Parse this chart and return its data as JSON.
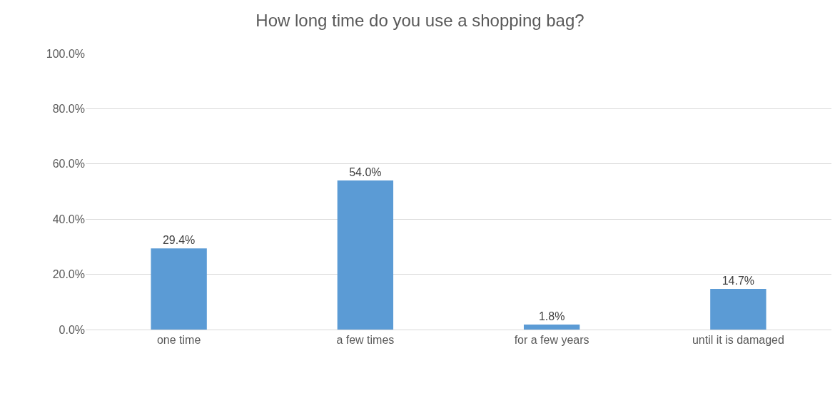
{
  "chart_data": {
    "type": "bar",
    "title": "How long time do you use a shopping bag?",
    "categories": [
      "one time",
      "a few times",
      "for a few years",
      "until it is damaged"
    ],
    "values": [
      29.4,
      54.0,
      1.8,
      14.7
    ],
    "value_labels": [
      "29.4%",
      "54.0%",
      "1.8%",
      "14.7%"
    ],
    "color": "#5b9bd5",
    "ylim": [
      0,
      100
    ],
    "yticks": [
      {
        "value": 0,
        "label": "0.0%"
      },
      {
        "value": 20,
        "label": "20.0%"
      },
      {
        "value": 40,
        "label": "40.0%"
      },
      {
        "value": 60,
        "label": "60.0%"
      },
      {
        "value": 80,
        "label": "80.0%"
      },
      {
        "value": 100,
        "label": "100.0%"
      }
    ],
    "grid": "y"
  }
}
